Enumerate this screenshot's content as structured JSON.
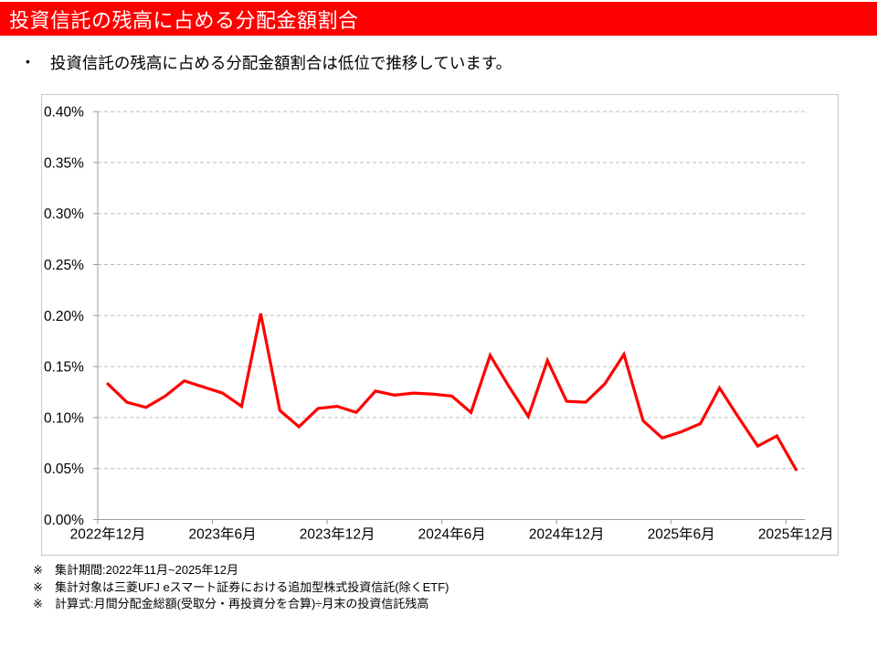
{
  "header": {
    "title": "投資信託の残高に占める分配金額割合"
  },
  "summary": {
    "bullet_marker": "•",
    "text": "投資信託の残高に占める分配金額割合は低位で推移しています。"
  },
  "chart_data": {
    "type": "line",
    "title": "",
    "xlabel": "",
    "ylabel": "",
    "unit": "%",
    "ylim": [
      0,
      0.4
    ],
    "y_tick_step": 0.05,
    "grid": "horizontal-dashed",
    "legend": "none",
    "x_tick_interval": 6,
    "x_tick_labels": [
      "2022年12月",
      "2023年6月",
      "2023年12月",
      "2024年6月",
      "2024年12月",
      "2025年6月",
      "2025年12月"
    ],
    "y_tick_labels": [
      "0.00%",
      "0.05%",
      "0.10%",
      "0.15%",
      "0.20%",
      "0.25%",
      "0.30%",
      "0.35%",
      "0.40%"
    ],
    "categories": [
      "2022年12月",
      "2023年1月",
      "2023年2月",
      "2023年3月",
      "2023年4月",
      "2023年5月",
      "2023年6月",
      "2023年7月",
      "2023年8月",
      "2023年9月",
      "2023年10月",
      "2023年11月",
      "2023年12月",
      "2024年1月",
      "2024年2月",
      "2024年3月",
      "2024年4月",
      "2024年5月",
      "2024年6月",
      "2024年7月",
      "2024年8月",
      "2024年9月",
      "2024年10月",
      "2024年11月",
      "2024年12月",
      "2025年1月",
      "2025年2月",
      "2025年3月",
      "2025年4月",
      "2025年5月",
      "2025年6月",
      "2025年7月",
      "2025年8月",
      "2025年9月",
      "2025年10月",
      "2025年11月",
      "2025年12月"
    ],
    "series": [
      {
        "name": "投資信託の残高に占める分配金額割合",
        "color": "#FF0000",
        "values": [
          0.133,
          0.115,
          0.11,
          0.121,
          0.136,
          0.13,
          0.124,
          0.111,
          0.202,
          0.107,
          0.091,
          0.109,
          0.111,
          0.105,
          0.126,
          0.122,
          0.124,
          0.123,
          0.121,
          0.105,
          0.161,
          0.13,
          0.101,
          0.156,
          0.116,
          0.115,
          0.133,
          0.162,
          0.097,
          0.08,
          0.086,
          0.094,
          0.129,
          0.1,
          0.072,
          0.082,
          0.049
        ]
      }
    ]
  },
  "footnotes": [
    {
      "marker": "※",
      "text": "集計期間:2022年11月~2025年12月"
    },
    {
      "marker": "※",
      "text": "集計対象は三菱UFJ eスマート証券における追加型株式投資信託(除くETF)"
    },
    {
      "marker": "※",
      "text": "計算式:月間分配金総額(受取分・再投資分を合算)÷月末の投資信託残高"
    }
  ],
  "colors": {
    "header_bg": "#FF0000",
    "header_text": "#FFFFFF",
    "line": "#FF0000",
    "gridline": "#BFBFBF",
    "axis": "#9B9B9B",
    "chart_border": "#C8C8C8",
    "text": "#000000"
  }
}
